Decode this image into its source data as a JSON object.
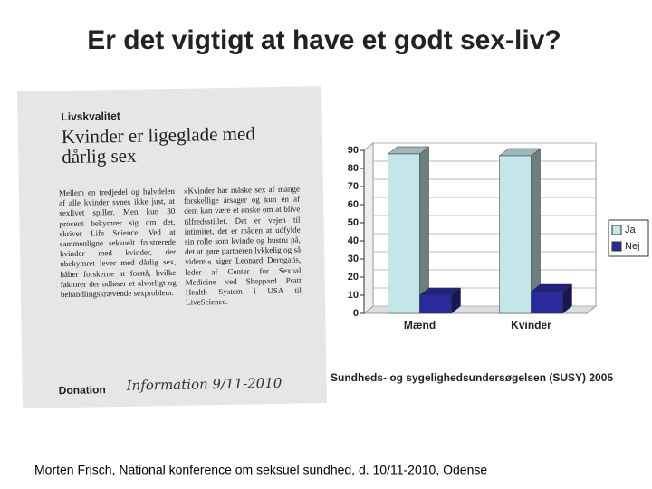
{
  "title": "Er det vigtigt at have et godt sex-liv?",
  "clipping": {
    "kicker": "Livskvalitet",
    "headline": "Kvinder er ligeglade med dårlig sex",
    "column_1": "Mellem en tredjedel og halvdelen af alle kvinder synes ikke just, at sexlivet spiller. Men kun 30 procent bekymrer sig om det, skriver Life Science. Ved at sammenligne seksuelt frustrerede kvinder med kvinder, der ubekymret lever med dårlig sex, håber forskerne at forstå, hvilke faktorer der udløser et alvorligt og behandlingskrævende sexproblem.",
    "column_2": "»Kvinder har måske sex af mange forskellige årsager og kun én af dem kan være et ønske om at blive tilfredsstillet. Det er vejen til intimitet, det er måden at udfylde sin rolle som kvinde og hustru på, det at gøre partneren lykkelig og så videre,« siger Leonard Derogatis, leder af Center for Sexual Medicine ved Sheppard Pratt Health System i USA til LiveScience.",
    "section": "Donation",
    "handwriting": "Information 9/11-2010"
  },
  "chart_data": {
    "type": "bar",
    "categories": [
      "Mænd",
      "Kvinder"
    ],
    "series": [
      {
        "name": "Ja",
        "color": "#c4e6e8",
        "values": [
          88,
          87
        ]
      },
      {
        "name": "Nej",
        "color": "#2a2a9c",
        "values": [
          10,
          12
        ]
      }
    ],
    "ylim": [
      0,
      90
    ],
    "yticks": [
      0,
      10,
      20,
      30,
      40,
      50,
      60,
      70,
      80,
      90
    ],
    "grid": true,
    "legend": "right"
  },
  "source": "Sundheds- og sygelighedsundersøgelsen (SUSY) 2005",
  "footer": "Morten Frisch, National konference om seksuel sundhed, d. 10/11-2010, Odense"
}
